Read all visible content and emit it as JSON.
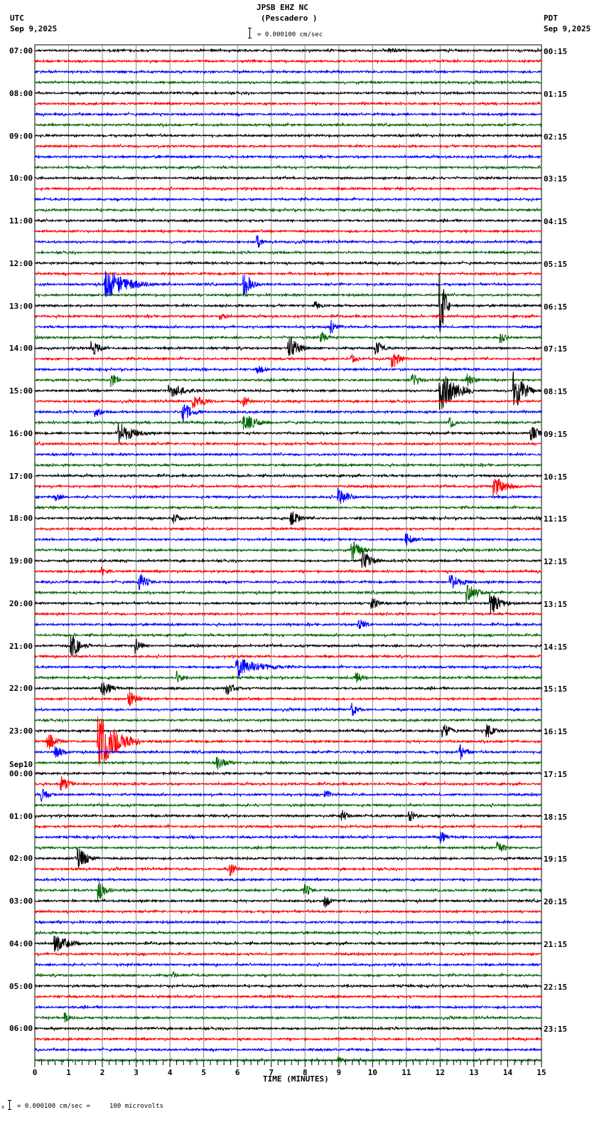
{
  "header": {
    "station": "JPSB EHZ NC",
    "location": "(Pescadero )",
    "left_tz": "UTC",
    "left_date": "Sep 9,2025",
    "right_tz": "PDT",
    "right_date": "Sep 9,2025",
    "scale_text": "= 0.000100 cm/sec"
  },
  "footer": {
    "scale_text": "= 0.000100 cm/sec =     100 microvolts",
    "prefix": "x"
  },
  "chart_data": {
    "type": "seismogram",
    "title": "JPSB EHZ NC (Pescadero )",
    "xlabel": "TIME (MINUTES)",
    "x_ticks": [
      "0",
      "1",
      "2",
      "3",
      "4",
      "5",
      "6",
      "7",
      "8",
      "9",
      "10",
      "11",
      "12",
      "13",
      "14",
      "15"
    ],
    "xlim": [
      0,
      15
    ],
    "trace_colors": [
      "#000000",
      "#ff0000",
      "#0000ff",
      "#006400"
    ],
    "traces_per_hour": 4,
    "left_labels": [
      "07:00",
      "08:00",
      "09:00",
      "10:00",
      "11:00",
      "12:00",
      "13:00",
      "14:00",
      "15:00",
      "16:00",
      "17:00",
      "18:00",
      "19:00",
      "20:00",
      "21:00",
      "22:00",
      "23:00",
      "Sep10 00:00",
      "01:00",
      "02:00",
      "03:00",
      "04:00",
      "05:00",
      "06:00"
    ],
    "right_labels": [
      "00:15",
      "01:15",
      "02:15",
      "03:15",
      "04:15",
      "05:15",
      "06:15",
      "07:15",
      "08:15",
      "09:15",
      "10:15",
      "11:15",
      "12:15",
      "13:15",
      "14:15",
      "15:15",
      "16:15",
      "17:15",
      "18:15",
      "19:15",
      "20:15",
      "21:15",
      "22:15",
      "23:15"
    ],
    "events": [
      {
        "trace": 0,
        "minute": 10.5,
        "amp": 4,
        "dur": 1.0
      },
      {
        "trace": 18,
        "minute": 6.6,
        "amp": 10,
        "dur": 0.3
      },
      {
        "trace": 22,
        "minute": 2.1,
        "amp": 22,
        "dur": 1.5
      },
      {
        "trace": 22,
        "minute": 6.2,
        "amp": 18,
        "dur": 0.5
      },
      {
        "trace": 24,
        "minute": 8.3,
        "amp": 8,
        "dur": 0.4
      },
      {
        "trace": 24,
        "minute": 12.0,
        "amp": 50,
        "dur": 0.3
      },
      {
        "trace": 25,
        "minute": 5.5,
        "amp": 7,
        "dur": 0.4
      },
      {
        "trace": 26,
        "minute": 8.8,
        "amp": 10,
        "dur": 0.4
      },
      {
        "trace": 27,
        "minute": 8.5,
        "amp": 8,
        "dur": 0.4
      },
      {
        "trace": 27,
        "minute": 13.8,
        "amp": 8,
        "dur": 0.4
      },
      {
        "trace": 28,
        "minute": 1.7,
        "amp": 12,
        "dur": 0.5
      },
      {
        "trace": 28,
        "minute": 7.5,
        "amp": 20,
        "dur": 0.6
      },
      {
        "trace": 28,
        "minute": 10.1,
        "amp": 12,
        "dur": 0.5
      },
      {
        "trace": 29,
        "minute": 9.4,
        "amp": 8,
        "dur": 0.4
      },
      {
        "trace": 29,
        "minute": 10.6,
        "amp": 14,
        "dur": 0.5
      },
      {
        "trace": 30,
        "minute": 6.6,
        "amp": 7,
        "dur": 0.6
      },
      {
        "trace": 31,
        "minute": 2.3,
        "amp": 10,
        "dur": 0.4
      },
      {
        "trace": 31,
        "minute": 11.2,
        "amp": 10,
        "dur": 0.5
      },
      {
        "trace": 31,
        "minute": 12.8,
        "amp": 10,
        "dur": 0.5
      },
      {
        "trace": 32,
        "minute": 4.0,
        "amp": 10,
        "dur": 1.2
      },
      {
        "trace": 32,
        "minute": 12.0,
        "amp": 30,
        "dur": 1.0
      },
      {
        "trace": 32,
        "minute": 14.2,
        "amp": 30,
        "dur": 0.6
      },
      {
        "trace": 33,
        "minute": 4.7,
        "amp": 10,
        "dur": 0.8
      },
      {
        "trace": 33,
        "minute": 6.2,
        "amp": 8,
        "dur": 0.4
      },
      {
        "trace": 34,
        "minute": 1.8,
        "amp": 8,
        "dur": 0.4
      },
      {
        "trace": 34,
        "minute": 4.4,
        "amp": 14,
        "dur": 0.6
      },
      {
        "trace": 35,
        "minute": 6.2,
        "amp": 14,
        "dur": 0.8
      },
      {
        "trace": 35,
        "minute": 12.3,
        "amp": 8,
        "dur": 0.4
      },
      {
        "trace": 36,
        "minute": 2.5,
        "amp": 16,
        "dur": 1.0
      },
      {
        "trace": 36,
        "minute": 14.7,
        "amp": 12,
        "dur": 0.5
      },
      {
        "trace": 41,
        "minute": 13.6,
        "amp": 16,
        "dur": 0.8
      },
      {
        "trace": 42,
        "minute": 9.0,
        "amp": 14,
        "dur": 0.6
      },
      {
        "trace": 42,
        "minute": 0.6,
        "amp": 8,
        "dur": 0.4
      },
      {
        "trace": 44,
        "minute": 4.1,
        "amp": 10,
        "dur": 0.4
      },
      {
        "trace": 44,
        "minute": 7.6,
        "amp": 12,
        "dur": 0.6
      },
      {
        "trace": 46,
        "minute": 11.0,
        "amp": 10,
        "dur": 0.5
      },
      {
        "trace": 47,
        "minute": 9.4,
        "amp": 14,
        "dur": 0.6
      },
      {
        "trace": 48,
        "minute": 9.7,
        "amp": 16,
        "dur": 0.6
      },
      {
        "trace": 49,
        "minute": 2.0,
        "amp": 8,
        "dur": 0.4
      },
      {
        "trace": 50,
        "minute": 3.1,
        "amp": 14,
        "dur": 0.5
      },
      {
        "trace": 50,
        "minute": 12.3,
        "amp": 12,
        "dur": 0.8
      },
      {
        "trace": 51,
        "minute": 12.8,
        "amp": 16,
        "dur": 0.6
      },
      {
        "trace": 52,
        "minute": 13.5,
        "amp": 20,
        "dur": 0.6
      },
      {
        "trace": 52,
        "minute": 10.0,
        "amp": 10,
        "dur": 0.4
      },
      {
        "trace": 54,
        "minute": 9.6,
        "amp": 10,
        "dur": 0.5
      },
      {
        "trace": 56,
        "minute": 1.1,
        "amp": 18,
        "dur": 0.6
      },
      {
        "trace": 56,
        "minute": 3.0,
        "amp": 12,
        "dur": 0.4
      },
      {
        "trace": 58,
        "minute": 6.0,
        "amp": 14,
        "dur": 1.6
      },
      {
        "trace": 59,
        "minute": 4.2,
        "amp": 10,
        "dur": 0.4
      },
      {
        "trace": 59,
        "minute": 9.5,
        "amp": 10,
        "dur": 0.4
      },
      {
        "trace": 60,
        "minute": 2.0,
        "amp": 12,
        "dur": 0.6
      },
      {
        "trace": 60,
        "minute": 5.7,
        "amp": 10,
        "dur": 0.5
      },
      {
        "trace": 61,
        "minute": 2.8,
        "amp": 12,
        "dur": 0.5
      },
      {
        "trace": 62,
        "minute": 9.4,
        "amp": 10,
        "dur": 0.4
      },
      {
        "trace": 64,
        "minute": 12.1,
        "amp": 12,
        "dur": 0.5
      },
      {
        "trace": 64,
        "minute": 13.4,
        "amp": 12,
        "dur": 0.5
      },
      {
        "trace": 65,
        "minute": 1.9,
        "amp": 40,
        "dur": 1.2
      },
      {
        "trace": 65,
        "minute": 0.4,
        "amp": 14,
        "dur": 0.5
      },
      {
        "trace": 66,
        "minute": 0.6,
        "amp": 10,
        "dur": 0.5
      },
      {
        "trace": 66,
        "minute": 12.6,
        "amp": 12,
        "dur": 0.4
      },
      {
        "trace": 67,
        "minute": 5.4,
        "amp": 10,
        "dur": 0.6
      },
      {
        "trace": 69,
        "minute": 0.8,
        "amp": 12,
        "dur": 0.5
      },
      {
        "trace": 70,
        "minute": 0.2,
        "amp": 10,
        "dur": 0.5
      },
      {
        "trace": 70,
        "minute": 8.6,
        "amp": 8,
        "dur": 0.4
      },
      {
        "trace": 72,
        "minute": 9.1,
        "amp": 10,
        "dur": 0.4
      },
      {
        "trace": 72,
        "minute": 11.1,
        "amp": 10,
        "dur": 0.4
      },
      {
        "trace": 74,
        "minute": 12.0,
        "amp": 10,
        "dur": 0.4
      },
      {
        "trace": 75,
        "minute": 13.7,
        "amp": 10,
        "dur": 0.5
      },
      {
        "trace": 76,
        "minute": 1.3,
        "amp": 16,
        "dur": 0.6
      },
      {
        "trace": 77,
        "minute": 5.8,
        "amp": 10,
        "dur": 0.4
      },
      {
        "trace": 79,
        "minute": 1.9,
        "amp": 14,
        "dur": 0.5
      },
      {
        "trace": 79,
        "minute": 8.0,
        "amp": 10,
        "dur": 0.4
      },
      {
        "trace": 80,
        "minute": 8.6,
        "amp": 10,
        "dur": 0.4
      },
      {
        "trace": 84,
        "minute": 0.6,
        "amp": 14,
        "dur": 0.9
      },
      {
        "trace": 87,
        "minute": 4.1,
        "amp": 6,
        "dur": 0.3
      },
      {
        "trace": 91,
        "minute": 0.9,
        "amp": 8,
        "dur": 0.3
      },
      {
        "trace": 95,
        "minute": 9.0,
        "amp": 6,
        "dur": 0.3
      }
    ]
  }
}
